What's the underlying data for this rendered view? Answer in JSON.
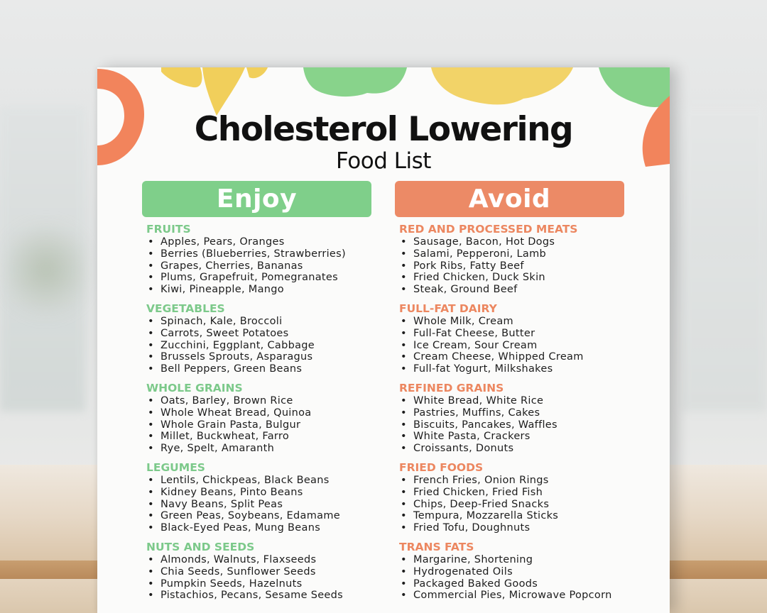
{
  "document": {
    "title": "Cholesterol Lowering",
    "subtitle": "Food List"
  },
  "enjoy": {
    "label": "Enjoy",
    "color": "#7fcf8a",
    "sections": [
      {
        "heading": "FRUITS",
        "items": [
          "Apples, Pears, Oranges",
          "Berries (Blueberries, Strawberries)",
          "Grapes, Cherries, Bananas",
          "Plums, Grapefruit, Pomegranates",
          "Kiwi, Pineapple, Mango"
        ]
      },
      {
        "heading": "VEGETABLES",
        "items": [
          "Spinach, Kale, Broccoli",
          "Carrots, Sweet Potatoes",
          "Zucchini, Eggplant, Cabbage",
          "Brussels Sprouts, Asparagus",
          "Bell Peppers, Green Beans"
        ]
      },
      {
        "heading": "WHOLE GRAINS",
        "items": [
          "Oats, Barley, Brown Rice",
          "Whole Wheat Bread, Quinoa",
          "Whole Grain Pasta, Bulgur",
          "Millet, Buckwheat, Farro",
          "Rye, Spelt, Amaranth"
        ]
      },
      {
        "heading": "LEGUMES",
        "items": [
          "Lentils, Chickpeas, Black Beans",
          "Kidney Beans, Pinto Beans",
          "Navy Beans, Split Peas",
          "Green Peas, Soybeans, Edamame",
          "Black-Eyed Peas, Mung Beans"
        ]
      },
      {
        "heading": "NUTS AND SEEDS",
        "items": [
          "Almonds, Walnuts, Flaxseeds",
          "Chia Seeds, Sunflower Seeds",
          "Pumpkin Seeds, Hazelnuts",
          "Pistachios, Pecans, Sesame Seeds"
        ]
      }
    ]
  },
  "avoid": {
    "label": "Avoid",
    "color": "#ec8a66",
    "sections": [
      {
        "heading": "RED AND PROCESSED MEATS",
        "items": [
          "Sausage, Bacon, Hot Dogs",
          "Salami, Pepperoni, Lamb",
          "Pork Ribs, Fatty Beef",
          "Fried Chicken, Duck Skin",
          "Steak, Ground Beef"
        ]
      },
      {
        "heading": "FULL-FAT DAIRY",
        "items": [
          "Whole Milk, Cream",
          "Full-Fat Cheese, Butter",
          "Ice Cream, Sour Cream",
          "Cream Cheese, Whipped Cream",
          "Full-fat Yogurt, Milkshakes"
        ]
      },
      {
        "heading": "REFINED GRAINS",
        "items": [
          "White Bread, White Rice",
          "Pastries, Muffins, Cakes",
          "Biscuits, Pancakes, Waffles",
          "White Pasta, Crackers",
          "Croissants, Donuts"
        ]
      },
      {
        "heading": "FRIED FOODS",
        "items": [
          "French Fries, Onion Rings",
          "Fried Chicken, Fried Fish",
          "Chips, Deep-Fried Snacks",
          "Tempura, Mozzarella Sticks",
          "Fried Tofu, Doughnuts"
        ]
      },
      {
        "heading": "TRANS FATS",
        "items": [
          "Margarine, Shortening",
          "Hydrogenated Oils",
          "Packaged Baked Goods",
          "Commercial Pies, Microwave Popcorn"
        ]
      }
    ]
  }
}
